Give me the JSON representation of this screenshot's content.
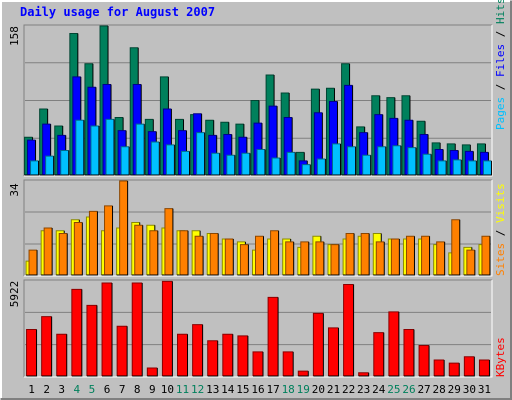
{
  "chart_data": {
    "type": "bar",
    "title": "Daily usage for August 2007",
    "categories": [
      "1",
      "2",
      "3",
      "4",
      "5",
      "6",
      "7",
      "8",
      "9",
      "10",
      "11",
      "12",
      "13",
      "14",
      "15",
      "16",
      "17",
      "18",
      "19",
      "20",
      "21",
      "22",
      "23",
      "24",
      "25",
      "26",
      "27",
      "28",
      "29",
      "30",
      "31"
    ],
    "weekend_days": [
      "4",
      "5",
      "11",
      "12",
      "18",
      "19",
      "25",
      "26"
    ],
    "panels": [
      {
        "id": "hits_files_pages",
        "ymax": 158,
        "ymax_label": "158",
        "series": [
          {
            "name": "Hits",
            "color": "#00805c",
            "values": [
              40,
              70,
              52,
              150,
              118,
              158,
              61,
              135,
              59,
              104,
              59,
              64,
              58,
              56,
              54,
              79,
              106,
              87,
              24,
              91,
              92,
              118,
              51,
              84,
              82,
              84,
              57,
              34,
              33,
              32,
              33
            ]
          },
          {
            "name": "Files",
            "color": "#0000ff",
            "values": [
              37,
              54,
              42,
              104,
              93,
              96,
              47,
              96,
              46,
              70,
              47,
              65,
              42,
              43,
              40,
              55,
              73,
              61,
              15,
              66,
              78,
              95,
              45,
              64,
              60,
              58,
              43,
              27,
              26,
              25,
              24
            ]
          },
          {
            "name": "Pages",
            "color": "#00c0ff",
            "values": [
              15,
              20,
              26,
              58,
              52,
              59,
              30,
              54,
              35,
              32,
              25,
              45,
              23,
              21,
              23,
              27,
              18,
              24,
              11,
              17,
              33,
              30,
              21,
              30,
              31,
              29,
              22,
              15,
              16,
              15,
              15
            ]
          }
        ]
      },
      {
        "id": "sites_visits",
        "ymax": 34,
        "ymax_label": "34",
        "series": [
          {
            "name": "Visits",
            "color": "#ffff00",
            "values": [
              5,
              16,
              16,
              20,
              21,
              16,
              17,
              19,
              18,
              17,
              16,
              16,
              15,
              13,
              12,
              9,
              13,
              13,
              10,
              14,
              11,
              13,
              14,
              15,
              13,
              13,
              13,
              11,
              8,
              10,
              11
            ]
          },
          {
            "name": "Sites",
            "color": "#ff8000",
            "values": [
              9,
              17,
              15,
              19,
              23,
              25,
              34,
              18,
              16,
              24,
              16,
              14,
              15,
              13,
              11,
              14,
              16,
              12,
              12,
              12,
              11,
              15,
              15,
              12,
              13,
              14,
              14,
              12,
              20,
              9,
              14
            ]
          }
        ]
      },
      {
        "id": "kbytes",
        "ymax": 5922,
        "ymax_label": "5922",
        "series": [
          {
            "name": "KBytes",
            "color": "#ff0000",
            "values": [
              2900,
              3700,
              2600,
              5400,
              4400,
              5800,
              3100,
              5800,
              500,
              5900,
              2600,
              3200,
              2200,
              2600,
              2500,
              1500,
              4900,
              1500,
              300,
              3900,
              3000,
              5700,
              200,
              2700,
              4000,
              2900,
              1900,
              1000,
              800,
              1200,
              1000
            ]
          }
        ]
      }
    ],
    "legend": {
      "position": "right"
    }
  }
}
